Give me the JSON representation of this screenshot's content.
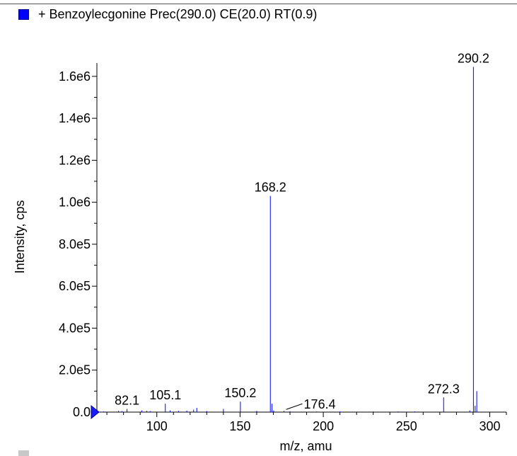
{
  "legend": {
    "label": "+ Benzoylecgonine Prec(290.0) CE(20.0) RT(0.9)",
    "color": "#0000ff"
  },
  "chart_data": {
    "type": "bar",
    "title": "+ Benzoylecgonine Prec(290.0) CE(20.0) RT(0.9)",
    "xlabel": "m/z, amu",
    "ylabel": "Intensity, cps",
    "xlim": [
      64,
      310
    ],
    "ylim": [
      0,
      1650000
    ],
    "x_ticks": [
      100,
      150,
      200,
      250,
      300
    ],
    "x_tick_labels": [
      "100",
      "150",
      "200",
      "250",
      "300"
    ],
    "y_ticks": [
      0,
      200000,
      400000,
      600000,
      800000,
      1000000,
      1200000,
      1400000,
      1600000
    ],
    "y_tick_labels": [
      "0.0",
      "2.0e5",
      "4.0e5",
      "6.0e5",
      "8.0e5",
      "1.0e6",
      "1.2e6",
      "1.4e6",
      "1.6e6"
    ],
    "series_color": "#0000ff",
    "grid": false,
    "peaks": [
      {
        "x": 68.1,
        "y": 3000
      },
      {
        "x": 77.0,
        "y": 6000
      },
      {
        "x": 79.0,
        "y": 5000
      },
      {
        "x": 82.1,
        "y": 15000
      },
      {
        "x": 91.0,
        "y": 8000
      },
      {
        "x": 94.0,
        "y": 6000
      },
      {
        "x": 96.0,
        "y": 5000
      },
      {
        "x": 105.1,
        "y": 40000
      },
      {
        "x": 108.0,
        "y": 8000
      },
      {
        "x": 113.0,
        "y": 6000
      },
      {
        "x": 118.0,
        "y": 7000
      },
      {
        "x": 122.1,
        "y": 12000
      },
      {
        "x": 124.0,
        "y": 20000
      },
      {
        "x": 130.0,
        "y": 5000
      },
      {
        "x": 140.0,
        "y": 15000
      },
      {
        "x": 150.2,
        "y": 50000
      },
      {
        "x": 160.0,
        "y": 6000
      },
      {
        "x": 168.2,
        "y": 1030000
      },
      {
        "x": 169.2,
        "y": 40000
      },
      {
        "x": 170.2,
        "y": 8000
      },
      {
        "x": 176.4,
        "y": 6000
      },
      {
        "x": 180.0,
        "y": 4000
      },
      {
        "x": 196.0,
        "y": 3000
      },
      {
        "x": 210.0,
        "y": 3000
      },
      {
        "x": 230.0,
        "y": 3000
      },
      {
        "x": 245.0,
        "y": 3000
      },
      {
        "x": 255.0,
        "y": 3000
      },
      {
        "x": 272.3,
        "y": 70000
      },
      {
        "x": 288.0,
        "y": 8000
      },
      {
        "x": 290.2,
        "y": 1645000
      },
      {
        "x": 291.2,
        "y": 30000
      },
      {
        "x": 292.2,
        "y": 100000
      }
    ],
    "peak_labels": [
      {
        "text": "82.1",
        "x": 82.1,
        "y": 15000
      },
      {
        "text": "105.1",
        "x": 105.1,
        "y": 40000
      },
      {
        "text": "150.2",
        "x": 150.2,
        "y": 50000
      },
      {
        "text": "168.2",
        "x": 168.2,
        "y": 1030000
      },
      {
        "text": "176.4",
        "x": 176.4,
        "y": 6000,
        "leader": true
      },
      {
        "text": "272.3",
        "x": 272.3,
        "y": 70000
      },
      {
        "text": "290.2",
        "x": 290.2,
        "y": 1645000
      }
    ]
  }
}
